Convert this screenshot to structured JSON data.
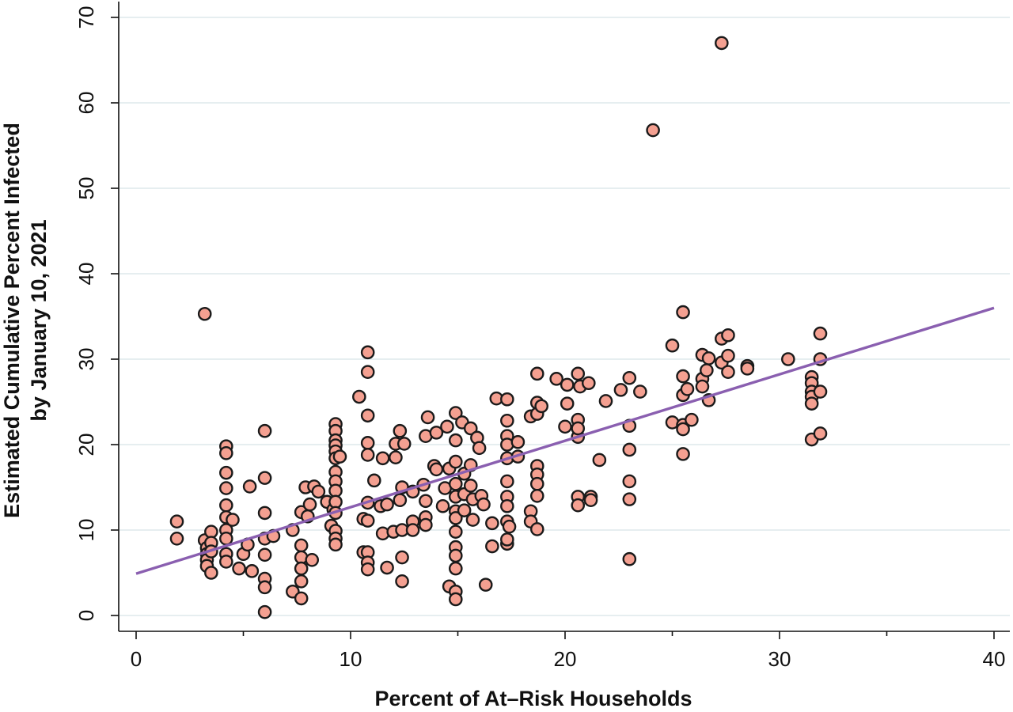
{
  "chart_data": {
    "type": "scatter",
    "title": "",
    "xlabel": "Percent of At–Risk Households",
    "ylabel_lines": [
      "Estimated Cumulative Percent Infected",
      "by January 10, 2021"
    ],
    "xlim": [
      0,
      40
    ],
    "ylim": [
      0,
      70
    ],
    "x_ticks": [
      0,
      10,
      20,
      30,
      40
    ],
    "x_minor_ticks": [
      5,
      15,
      25,
      35
    ],
    "y_ticks": [
      0,
      10,
      20,
      30,
      40,
      50,
      60,
      70
    ],
    "grid": "horizontal",
    "legend": "none",
    "colors": {
      "point_fill": "#f4a091",
      "point_stroke": "#1a1a1a",
      "fit_line": "#8a5fb0",
      "grid": "#dde8ec"
    },
    "series": [
      {
        "type": "scatter",
        "points": [
          [
            1.9,
            11.0
          ],
          [
            1.9,
            9.0
          ],
          [
            3.2,
            35.3
          ],
          [
            3.2,
            8.8
          ],
          [
            3.3,
            7.9
          ],
          [
            3.3,
            7.2
          ],
          [
            3.3,
            6.5
          ],
          [
            3.3,
            5.8
          ],
          [
            3.5,
            9.8
          ],
          [
            3.5,
            8.5
          ],
          [
            3.5,
            7.5
          ],
          [
            3.5,
            5.0
          ],
          [
            4.2,
            19.8
          ],
          [
            4.2,
            19.0
          ],
          [
            4.2,
            16.7
          ],
          [
            4.2,
            14.9
          ],
          [
            4.2,
            12.9
          ],
          [
            4.2,
            11.5
          ],
          [
            4.2,
            10.0
          ],
          [
            4.2,
            9.0
          ],
          [
            4.2,
            7.2
          ],
          [
            4.2,
            6.3
          ],
          [
            4.5,
            11.2
          ],
          [
            4.8,
            5.5
          ],
          [
            5.0,
            7.2
          ],
          [
            5.2,
            8.3
          ],
          [
            5.3,
            15.1
          ],
          [
            5.4,
            5.2
          ],
          [
            6.0,
            21.6
          ],
          [
            6.0,
            16.1
          ],
          [
            6.0,
            12.0
          ],
          [
            6.0,
            9.0
          ],
          [
            6.0,
            7.1
          ],
          [
            6.0,
            4.3
          ],
          [
            6.0,
            3.3
          ],
          [
            6.0,
            0.4
          ],
          [
            6.4,
            9.3
          ],
          [
            7.3,
            10.0
          ],
          [
            7.3,
            2.8
          ],
          [
            7.7,
            12.1
          ],
          [
            7.7,
            8.2
          ],
          [
            7.7,
            6.8
          ],
          [
            7.7,
            5.5
          ],
          [
            7.7,
            4.0
          ],
          [
            7.7,
            2.0
          ],
          [
            7.9,
            15.0
          ],
          [
            8.0,
            11.6
          ],
          [
            8.1,
            13.0
          ],
          [
            8.2,
            6.5
          ],
          [
            8.3,
            15.1
          ],
          [
            8.5,
            14.5
          ],
          [
            8.9,
            13.3
          ],
          [
            9.1,
            10.5
          ],
          [
            9.2,
            12.4
          ],
          [
            9.3,
            22.4
          ],
          [
            9.3,
            21.6
          ],
          [
            9.3,
            20.5
          ],
          [
            9.3,
            19.9
          ],
          [
            9.3,
            19.2
          ],
          [
            9.3,
            18.4
          ],
          [
            9.3,
            16.8
          ],
          [
            9.3,
            15.7
          ],
          [
            9.3,
            14.6
          ],
          [
            9.3,
            13.3
          ],
          [
            9.3,
            12.0
          ],
          [
            9.3,
            9.9
          ],
          [
            9.3,
            9.0
          ],
          [
            9.3,
            8.3
          ],
          [
            9.5,
            18.6
          ],
          [
            10.4,
            25.6
          ],
          [
            10.6,
            11.3
          ],
          [
            10.6,
            7.4
          ],
          [
            10.8,
            30.8
          ],
          [
            10.8,
            28.5
          ],
          [
            10.8,
            23.4
          ],
          [
            10.8,
            20.2
          ],
          [
            10.8,
            18.8
          ],
          [
            10.8,
            13.2
          ],
          [
            10.8,
            11.1
          ],
          [
            10.8,
            7.4
          ],
          [
            10.8,
            6.2
          ],
          [
            10.8,
            5.4
          ],
          [
            11.1,
            15.8
          ],
          [
            11.4,
            12.8
          ],
          [
            11.5,
            9.6
          ],
          [
            11.5,
            18.4
          ],
          [
            11.7,
            5.6
          ],
          [
            11.7,
            13.0
          ],
          [
            12.0,
            9.8
          ],
          [
            12.1,
            18.5
          ],
          [
            12.1,
            20.1
          ],
          [
            12.3,
            21.6
          ],
          [
            12.3,
            13.5
          ],
          [
            12.4,
            15.0
          ],
          [
            12.4,
            10.0
          ],
          [
            12.4,
            6.8
          ],
          [
            12.4,
            4.0
          ],
          [
            12.5,
            20.1
          ],
          [
            12.9,
            14.5
          ],
          [
            12.9,
            11.0
          ],
          [
            12.9,
            10.0
          ],
          [
            13.4,
            15.3
          ],
          [
            13.5,
            21.0
          ],
          [
            13.6,
            23.2
          ],
          [
            13.5,
            11.5
          ],
          [
            13.5,
            10.6
          ],
          [
            13.5,
            13.4
          ],
          [
            13.9,
            17.5
          ],
          [
            14.0,
            17.1
          ],
          [
            14.0,
            21.4
          ],
          [
            14.3,
            12.8
          ],
          [
            14.4,
            14.9
          ],
          [
            14.5,
            22.1
          ],
          [
            14.6,
            3.4
          ],
          [
            14.6,
            17.2
          ],
          [
            14.9,
            23.7
          ],
          [
            14.9,
            20.5
          ],
          [
            14.9,
            18.0
          ],
          [
            14.9,
            15.4
          ],
          [
            14.9,
            13.9
          ],
          [
            14.9,
            12.2
          ],
          [
            14.9,
            11.4
          ],
          [
            14.9,
            9.8
          ],
          [
            14.9,
            8.0
          ],
          [
            14.9,
            7.0
          ],
          [
            14.9,
            5.5
          ],
          [
            14.9,
            2.8
          ],
          [
            14.9,
            1.9
          ],
          [
            15.2,
            22.6
          ],
          [
            15.3,
            16.6
          ],
          [
            15.3,
            14.2
          ],
          [
            15.3,
            12.3
          ],
          [
            15.6,
            21.9
          ],
          [
            15.6,
            17.6
          ],
          [
            15.6,
            15.2
          ],
          [
            15.7,
            11.2
          ],
          [
            15.7,
            13.6
          ],
          [
            15.9,
            20.8
          ],
          [
            16.0,
            19.6
          ],
          [
            16.1,
            14.0
          ],
          [
            16.2,
            13.0
          ],
          [
            16.3,
            3.6
          ],
          [
            16.6,
            10.8
          ],
          [
            16.6,
            8.1
          ],
          [
            16.8,
            25.4
          ],
          [
            17.3,
            25.3
          ],
          [
            17.3,
            22.8
          ],
          [
            17.3,
            21.0
          ],
          [
            17.3,
            20.0
          ],
          [
            17.3,
            18.4
          ],
          [
            17.3,
            15.7
          ],
          [
            17.3,
            13.9
          ],
          [
            17.3,
            12.8
          ],
          [
            17.3,
            11.0
          ],
          [
            17.3,
            8.4
          ],
          [
            17.3,
            8.9
          ],
          [
            17.4,
            10.4
          ],
          [
            17.8,
            18.6
          ],
          [
            17.8,
            20.3
          ],
          [
            18.4,
            23.3
          ],
          [
            18.4,
            12.2
          ],
          [
            18.4,
            11.0
          ],
          [
            18.7,
            28.3
          ],
          [
            18.7,
            24.9
          ],
          [
            18.7,
            23.6
          ],
          [
            18.7,
            17.5
          ],
          [
            18.7,
            16.5
          ],
          [
            18.7,
            15.4
          ],
          [
            18.7,
            14.0
          ],
          [
            18.7,
            10.1
          ],
          [
            18.9,
            24.5
          ],
          [
            19.6,
            27.7
          ],
          [
            20.0,
            22.1
          ],
          [
            20.1,
            24.8
          ],
          [
            20.1,
            27.0
          ],
          [
            20.6,
            28.3
          ],
          [
            20.6,
            22.9
          ],
          [
            20.6,
            20.9
          ],
          [
            20.6,
            13.9
          ],
          [
            20.6,
            12.9
          ],
          [
            20.7,
            26.8
          ],
          [
            20.6,
            21.9
          ],
          [
            21.1,
            27.2
          ],
          [
            21.2,
            13.9
          ],
          [
            21.2,
            13.5
          ],
          [
            21.6,
            18.2
          ],
          [
            21.9,
            25.1
          ],
          [
            22.6,
            26.4
          ],
          [
            23.0,
            27.8
          ],
          [
            23.0,
            22.2
          ],
          [
            23.0,
            19.4
          ],
          [
            23.0,
            15.7
          ],
          [
            23.0,
            13.6
          ],
          [
            23.0,
            6.6
          ],
          [
            23.5,
            26.2
          ],
          [
            24.1,
            56.8
          ],
          [
            25.0,
            31.6
          ],
          [
            25.0,
            22.6
          ],
          [
            25.5,
            35.5
          ],
          [
            25.5,
            28.0
          ],
          [
            25.5,
            25.8
          ],
          [
            25.5,
            22.3
          ],
          [
            25.5,
            21.8
          ],
          [
            25.5,
            18.9
          ],
          [
            25.7,
            26.5
          ],
          [
            25.9,
            22.9
          ],
          [
            26.4,
            30.5
          ],
          [
            26.4,
            27.7
          ],
          [
            26.4,
            26.8
          ],
          [
            26.6,
            28.7
          ],
          [
            26.7,
            30.1
          ],
          [
            26.7,
            25.2
          ],
          [
            27.3,
            67.0
          ],
          [
            27.3,
            32.4
          ],
          [
            27.3,
            29.6
          ],
          [
            27.6,
            32.8
          ],
          [
            27.6,
            30.4
          ],
          [
            27.6,
            28.5
          ],
          [
            28.5,
            29.2
          ],
          [
            28.5,
            28.9
          ],
          [
            30.4,
            30.0
          ],
          [
            31.5,
            27.9
          ],
          [
            31.5,
            27.2
          ],
          [
            31.5,
            26.2
          ],
          [
            31.5,
            25.6
          ],
          [
            31.5,
            24.8
          ],
          [
            31.5,
            20.6
          ],
          [
            31.9,
            33.0
          ],
          [
            31.9,
            30.0
          ],
          [
            31.9,
            26.2
          ],
          [
            31.9,
            21.3
          ]
        ]
      },
      {
        "type": "line",
        "points": [
          [
            0,
            4.9
          ],
          [
            40,
            36.0
          ]
        ]
      }
    ]
  }
}
